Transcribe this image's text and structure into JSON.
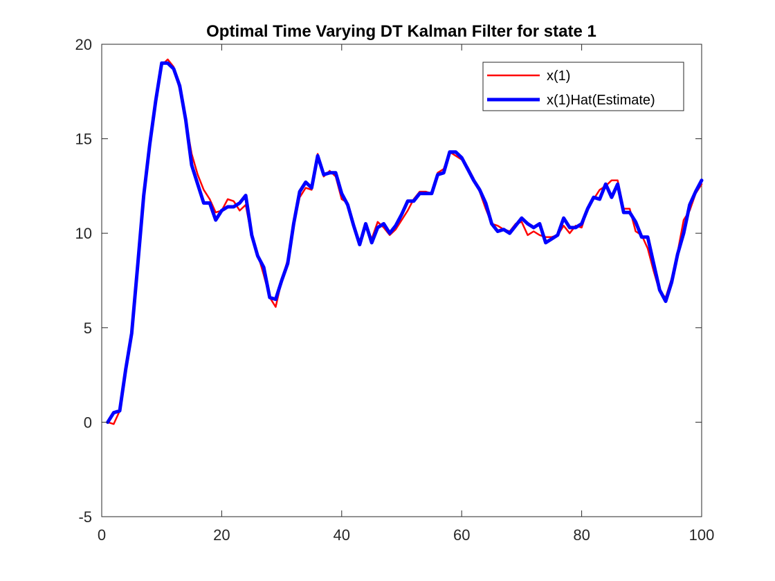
{
  "chart_data": {
    "type": "line",
    "title": "Optimal Time Varying DT Kalman Filter for state 1",
    "xlabel": "",
    "ylabel": "",
    "xlim": [
      0,
      100
    ],
    "ylim": [
      -5,
      20
    ],
    "xticks": [
      0,
      20,
      40,
      60,
      80,
      100
    ],
    "yticks": [
      -5,
      0,
      5,
      10,
      15,
      20
    ],
    "grid": false,
    "legend_position": "top-right",
    "series": [
      {
        "name": "x(1)",
        "color": "#ff0000",
        "x": [
          1,
          2,
          3,
          4,
          5,
          6,
          7,
          8,
          9,
          10,
          11,
          12,
          13,
          14,
          15,
          16,
          17,
          18,
          19,
          20,
          21,
          22,
          23,
          24,
          25,
          26,
          27,
          28,
          29,
          30,
          31,
          32,
          33,
          34,
          35,
          36,
          37,
          38,
          39,
          40,
          41,
          42,
          43,
          44,
          45,
          46,
          47,
          48,
          49,
          50,
          51,
          52,
          53,
          54,
          55,
          56,
          57,
          58,
          59,
          60,
          61,
          62,
          63,
          64,
          65,
          66,
          67,
          68,
          69,
          70,
          71,
          72,
          73,
          74,
          75,
          76,
          77,
          78,
          79,
          80,
          81,
          82,
          83,
          84,
          85,
          86,
          87,
          88,
          89,
          90,
          91,
          92,
          93,
          94,
          95,
          96,
          97,
          98,
          99,
          100
        ],
        "values": [
          0.0,
          -0.1,
          0.6,
          2.8,
          4.7,
          8.5,
          12.2,
          14.8,
          17.2,
          18.9,
          19.2,
          18.8,
          17.6,
          16.0,
          14.2,
          13.1,
          12.3,
          11.8,
          11.1,
          11.2,
          11.8,
          11.7,
          11.2,
          11.5,
          9.8,
          8.9,
          7.8,
          6.6,
          6.1,
          7.5,
          8.6,
          10.4,
          11.9,
          12.4,
          12.3,
          14.2,
          13.0,
          13.3,
          13.0,
          11.8,
          11.6,
          10.4,
          9.5,
          10.3,
          9.7,
          10.6,
          10.3,
          9.9,
          10.2,
          10.7,
          11.2,
          11.8,
          12.2,
          12.2,
          12.1,
          13.2,
          13.4,
          14.3,
          14.1,
          13.9,
          13.5,
          12.9,
          12.2,
          11.3,
          10.5,
          10.4,
          10.2,
          10.1,
          10.5,
          10.6,
          9.9,
          10.1,
          9.9,
          9.8,
          9.8,
          9.9,
          10.4,
          10.0,
          10.4,
          10.3,
          11.3,
          11.8,
          12.3,
          12.5,
          12.8,
          12.8,
          11.3,
          11.3,
          10.1,
          9.9,
          9.2,
          8.0,
          6.9,
          6.6,
          7.6,
          9.0,
          10.7,
          11.2,
          12.1,
          12.6
        ]
      },
      {
        "name": "x(1)Hat(Estimate)",
        "color": "#0000ff",
        "x": [
          1,
          2,
          3,
          4,
          5,
          6,
          7,
          8,
          9,
          10,
          11,
          12,
          13,
          14,
          15,
          16,
          17,
          18,
          19,
          20,
          21,
          22,
          23,
          24,
          25,
          26,
          27,
          28,
          29,
          30,
          31,
          32,
          33,
          34,
          35,
          36,
          37,
          38,
          39,
          40,
          41,
          42,
          43,
          44,
          45,
          46,
          47,
          48,
          49,
          50,
          51,
          52,
          53,
          54,
          55,
          56,
          57,
          58,
          59,
          60,
          61,
          62,
          63,
          64,
          65,
          66,
          67,
          68,
          69,
          70,
          71,
          72,
          73,
          74,
          75,
          76,
          77,
          78,
          79,
          80,
          81,
          82,
          83,
          84,
          85,
          86,
          87,
          88,
          89,
          90,
          91,
          92,
          93,
          94,
          95,
          96,
          97,
          98,
          99,
          100
        ],
        "values": [
          0.0,
          0.5,
          0.6,
          2.8,
          4.7,
          8.3,
          12.0,
          14.7,
          17.0,
          19.0,
          19.0,
          18.7,
          17.8,
          16.0,
          13.6,
          12.6,
          11.6,
          11.6,
          10.7,
          11.2,
          11.4,
          11.4,
          11.6,
          12.0,
          9.9,
          8.8,
          8.2,
          6.6,
          6.5,
          7.5,
          8.4,
          10.5,
          12.2,
          12.7,
          12.4,
          14.1,
          13.1,
          13.2,
          13.2,
          12.1,
          11.5,
          10.4,
          9.4,
          10.5,
          9.5,
          10.3,
          10.5,
          10.0,
          10.4,
          11.0,
          11.7,
          11.7,
          12.1,
          12.1,
          12.1,
          13.1,
          13.2,
          14.3,
          14.3,
          14.0,
          13.4,
          12.8,
          12.3,
          11.6,
          10.5,
          10.1,
          10.2,
          10.0,
          10.4,
          10.8,
          10.5,
          10.3,
          10.5,
          9.5,
          9.7,
          9.9,
          10.8,
          10.3,
          10.3,
          10.5,
          11.3,
          11.9,
          11.8,
          12.6,
          11.9,
          12.6,
          11.1,
          11.1,
          10.6,
          9.8,
          9.8,
          8.4,
          7.0,
          6.4,
          7.4,
          8.9,
          10.0,
          11.5,
          12.2,
          12.8
        ]
      }
    ]
  }
}
